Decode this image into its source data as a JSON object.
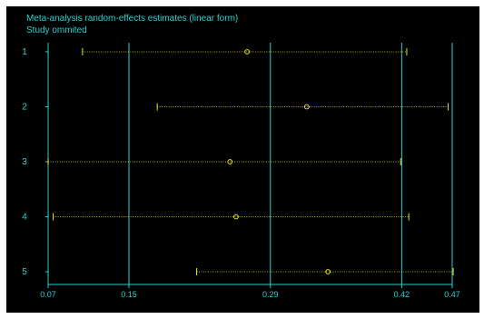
{
  "chart_data": {
    "type": "forest",
    "title": "Meta-analysis random-effects estimates (linear form)",
    "subtitle": "Study ommited",
    "x_ticks": [
      0.07,
      0.15,
      0.29,
      0.42,
      0.47
    ],
    "x_tick_labels": [
      "0.07",
      "0.15",
      "0.29",
      "0.42",
      "0.47"
    ],
    "reference_lines": [
      0.15,
      0.29,
      0.42
    ],
    "xlim": [
      0.07,
      0.47
    ],
    "grid": false,
    "studies": [
      {
        "label": "1",
        "estimate": 0.267,
        "lower": 0.104,
        "upper": 0.425
      },
      {
        "label": "2",
        "estimate": 0.326,
        "lower": 0.178,
        "upper": 0.466
      },
      {
        "label": "3",
        "estimate": 0.25,
        "lower": 0.07,
        "upper": 0.419
      },
      {
        "label": "4",
        "estimate": 0.256,
        "lower": 0.075,
        "upper": 0.427
      },
      {
        "label": "5",
        "estimate": 0.347,
        "lower": 0.217,
        "upper": 0.471
      }
    ]
  },
  "colors": {
    "background": "#000000",
    "frame": "#2ad1d1",
    "axis_text": "#2ad1d1",
    "estimate_marker": "#e6e61e",
    "ci_line": "#e6e61e",
    "ci_cap": "#e6e61e"
  }
}
